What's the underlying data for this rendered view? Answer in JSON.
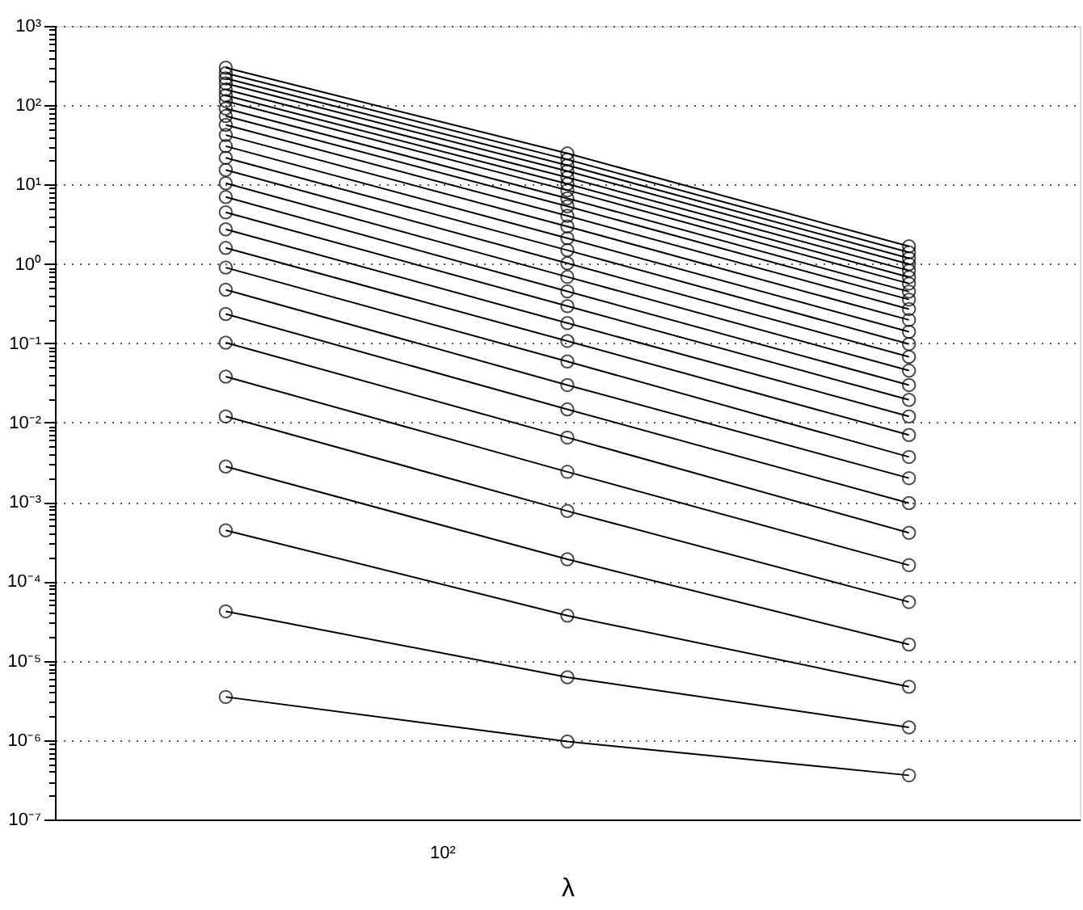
{
  "chart_data": {
    "type": "line",
    "xlabel": "λ",
    "marker": "circle",
    "line_style": "solid",
    "log": "y",
    "grid": "y",
    "categories": [
      null,
      null,
      null
    ],
    "annotations": [
      "10²"
    ],
    "ylim": [
      1e-07,
      1000
    ],
    "yticks": [
      {
        "value": 1e-07,
        "label": "10⁻⁷"
      },
      {
        "value": 1e-06,
        "label": "10⁻⁶"
      },
      {
        "value": 1e-05,
        "label": "10⁻⁵"
      },
      {
        "value": 0.0001,
        "label": "10⁻⁴"
      },
      {
        "value": 0.001,
        "label": "10⁻³"
      },
      {
        "value": 0.01,
        "label": "10⁻²"
      },
      {
        "value": 0.1,
        "label": "10⁻¹"
      },
      {
        "value": 1,
        "label": "10⁰"
      },
      {
        "value": 10,
        "label": "10¹"
      },
      {
        "value": 100,
        "label": "10²"
      },
      {
        "value": 1000,
        "label": "10³"
      },
      {
        "value": 2e-07,
        "label": null
      },
      {
        "value": 3e-07,
        "label": null
      },
      {
        "value": 4e-07,
        "label": null
      },
      {
        "value": 5e-07,
        "label": null
      },
      {
        "value": 6e-07,
        "label": null
      },
      {
        "value": 7e-07,
        "label": null
      },
      {
        "value": 8e-07,
        "label": null
      },
      {
        "value": 9e-07,
        "label": null
      },
      {
        "value": 2e-06,
        "label": null
      },
      {
        "value": 3e-06,
        "label": null
      },
      {
        "value": 4e-06,
        "label": null
      },
      {
        "value": 5e-06,
        "label": null
      },
      {
        "value": 6e-06,
        "label": null
      },
      {
        "value": 7e-06,
        "label": null
      },
      {
        "value": 8e-06,
        "label": null
      },
      {
        "value": 9e-06,
        "label": null
      },
      {
        "value": 2e-05,
        "label": null
      },
      {
        "value": 3e-05,
        "label": null
      },
      {
        "value": 4e-05,
        "label": null
      },
      {
        "value": 5e-05,
        "label": null
      },
      {
        "value": 6e-05,
        "label": null
      },
      {
        "value": 7e-05,
        "label": null
      },
      {
        "value": 8e-05,
        "label": null
      },
      {
        "value": 9e-05,
        "label": null
      },
      {
        "value": 0.0002,
        "label": null
      },
      {
        "value": 0.0003,
        "label": null
      },
      {
        "value": 0.0004,
        "label": null
      },
      {
        "value": 0.0005,
        "label": null
      },
      {
        "value": 0.0006,
        "label": null
      },
      {
        "value": 0.0007,
        "label": null
      },
      {
        "value": 0.0008,
        "label": null
      },
      {
        "value": 0.0009,
        "label": null
      },
      {
        "value": 0.002,
        "label": null
      },
      {
        "value": 0.003,
        "label": null
      },
      {
        "value": 0.004,
        "label": null
      },
      {
        "value": 0.005,
        "label": null
      },
      {
        "value": 0.006,
        "label": null
      },
      {
        "value": 0.007,
        "label": null
      },
      {
        "value": 0.008,
        "label": null
      },
      {
        "value": 0.009,
        "label": null
      },
      {
        "value": 0.02,
        "label": null
      },
      {
        "value": 0.03,
        "label": null
      },
      {
        "value": 0.04,
        "label": null
      },
      {
        "value": 0.05,
        "label": null
      },
      {
        "value": 0.06,
        "label": null
      },
      {
        "value": 0.07,
        "label": null
      },
      {
        "value": 0.08,
        "label": null
      },
      {
        "value": 0.09,
        "label": null
      },
      {
        "value": 0.2,
        "label": null
      },
      {
        "value": 0.3,
        "label": null
      },
      {
        "value": 0.4,
        "label": null
      },
      {
        "value": 0.5,
        "label": null
      },
      {
        "value": 0.6,
        "label": null
      },
      {
        "value": 0.7,
        "label": null
      },
      {
        "value": 0.8,
        "label": null
      },
      {
        "value": 0.9,
        "label": null
      },
      {
        "value": 2,
        "label": null
      },
      {
        "value": 3,
        "label": null
      },
      {
        "value": 4,
        "label": null
      },
      {
        "value": 5,
        "label": null
      },
      {
        "value": 6,
        "label": null
      },
      {
        "value": 7,
        "label": null
      },
      {
        "value": 8,
        "label": null
      },
      {
        "value": 9,
        "label": null
      },
      {
        "value": 20,
        "label": null
      },
      {
        "value": 30,
        "label": null
      },
      {
        "value": 40,
        "label": null
      },
      {
        "value": 50,
        "label": null
      },
      {
        "value": 60,
        "label": null
      },
      {
        "value": 70,
        "label": null
      },
      {
        "value": 80,
        "label": null
      },
      {
        "value": 90,
        "label": null
      },
      {
        "value": 200,
        "label": null
      },
      {
        "value": 300,
        "label": null
      },
      {
        "value": 400,
        "label": null
      },
      {
        "value": 500,
        "label": null
      },
      {
        "value": 600,
        "label": null
      },
      {
        "value": 700,
        "label": null
      },
      {
        "value": 800,
        "label": null
      },
      {
        "value": 900,
        "label": null
      }
    ],
    "series": [
      {
        "color": "#000000",
        "values": [
          3.5e-06,
          9.6e-07,
          3.6e-07
        ]
      },
      {
        "color": "#000000",
        "values": [
          4.2e-05,
          6.2e-06,
          1.45e-06
        ]
      },
      {
        "color": "#000000",
        "values": [
          0.00044,
          3.7e-05,
          4.7e-06
        ]
      },
      {
        "color": "#000000",
        "values": [
          0.0028,
          0.00019,
          1.6e-05
        ]
      },
      {
        "color": "#000000",
        "values": [
          0.012,
          0.00077,
          5.5e-05
        ]
      },
      {
        "color": "#000000",
        "values": [
          0.038,
          0.0024,
          0.00016
        ]
      },
      {
        "color": "#000000",
        "values": [
          0.102,
          0.0065,
          0.00041
        ]
      },
      {
        "color": "#000000",
        "values": [
          0.234,
          0.0147,
          0.00097
        ]
      },
      {
        "color": "#000000",
        "values": [
          0.473,
          0.0298,
          0.002
        ]
      },
      {
        "color": "#000000",
        "values": [
          0.9,
          0.059,
          0.0037
        ]
      },
      {
        "color": "#000000",
        "values": [
          1.59,
          0.107,
          0.007
        ]
      },
      {
        "color": "#000000",
        "values": [
          2.73,
          0.18,
          0.012
        ]
      },
      {
        "color": "#000000",
        "values": [
          4.47,
          0.294,
          0.0194
        ]
      },
      {
        "color": "#000000",
        "values": [
          6.97,
          0.452,
          0.0298
        ]
      },
      {
        "color": "#000000",
        "values": [
          10.4,
          0.687,
          0.0453
        ]
      },
      {
        "color": "#000000",
        "values": [
          15.3,
          1.02,
          0.0676
        ]
      },
      {
        "color": "#000000",
        "values": [
          21.8,
          1.49,
          0.098
        ]
      },
      {
        "color": "#000000",
        "values": [
          30.5,
          2.11,
          0.14
        ]
      },
      {
        "color": "#000000",
        "values": [
          42.1,
          2.97,
          0.197
        ]
      },
      {
        "color": "#000000",
        "values": [
          56.5,
          4.04,
          0.27
        ]
      },
      {
        "color": "#000000",
        "values": [
          73.1,
          5.33,
          0.356
        ]
      },
      {
        "color": "#000000",
        "values": [
          91.0,
          6.71,
          0.448
        ]
      },
      {
        "color": "#000000",
        "values": [
          113,
          8.49,
          0.566
        ]
      },
      {
        "color": "#000000",
        "values": [
          133,
          10.2,
          0.682
        ]
      },
      {
        "color": "#000000",
        "values": [
          158,
          12.3,
          0.824
        ]
      },
      {
        "color": "#000000",
        "values": [
          188,
          14.8,
          0.995
        ]
      },
      {
        "color": "#000000",
        "values": [
          218,
          17.5,
          1.18
        ]
      },
      {
        "color": "#000000",
        "values": [
          254,
          20.7,
          1.4
        ]
      },
      {
        "color": "#000000",
        "values": [
          297,
          24.7,
          1.67
        ]
      }
    ]
  }
}
